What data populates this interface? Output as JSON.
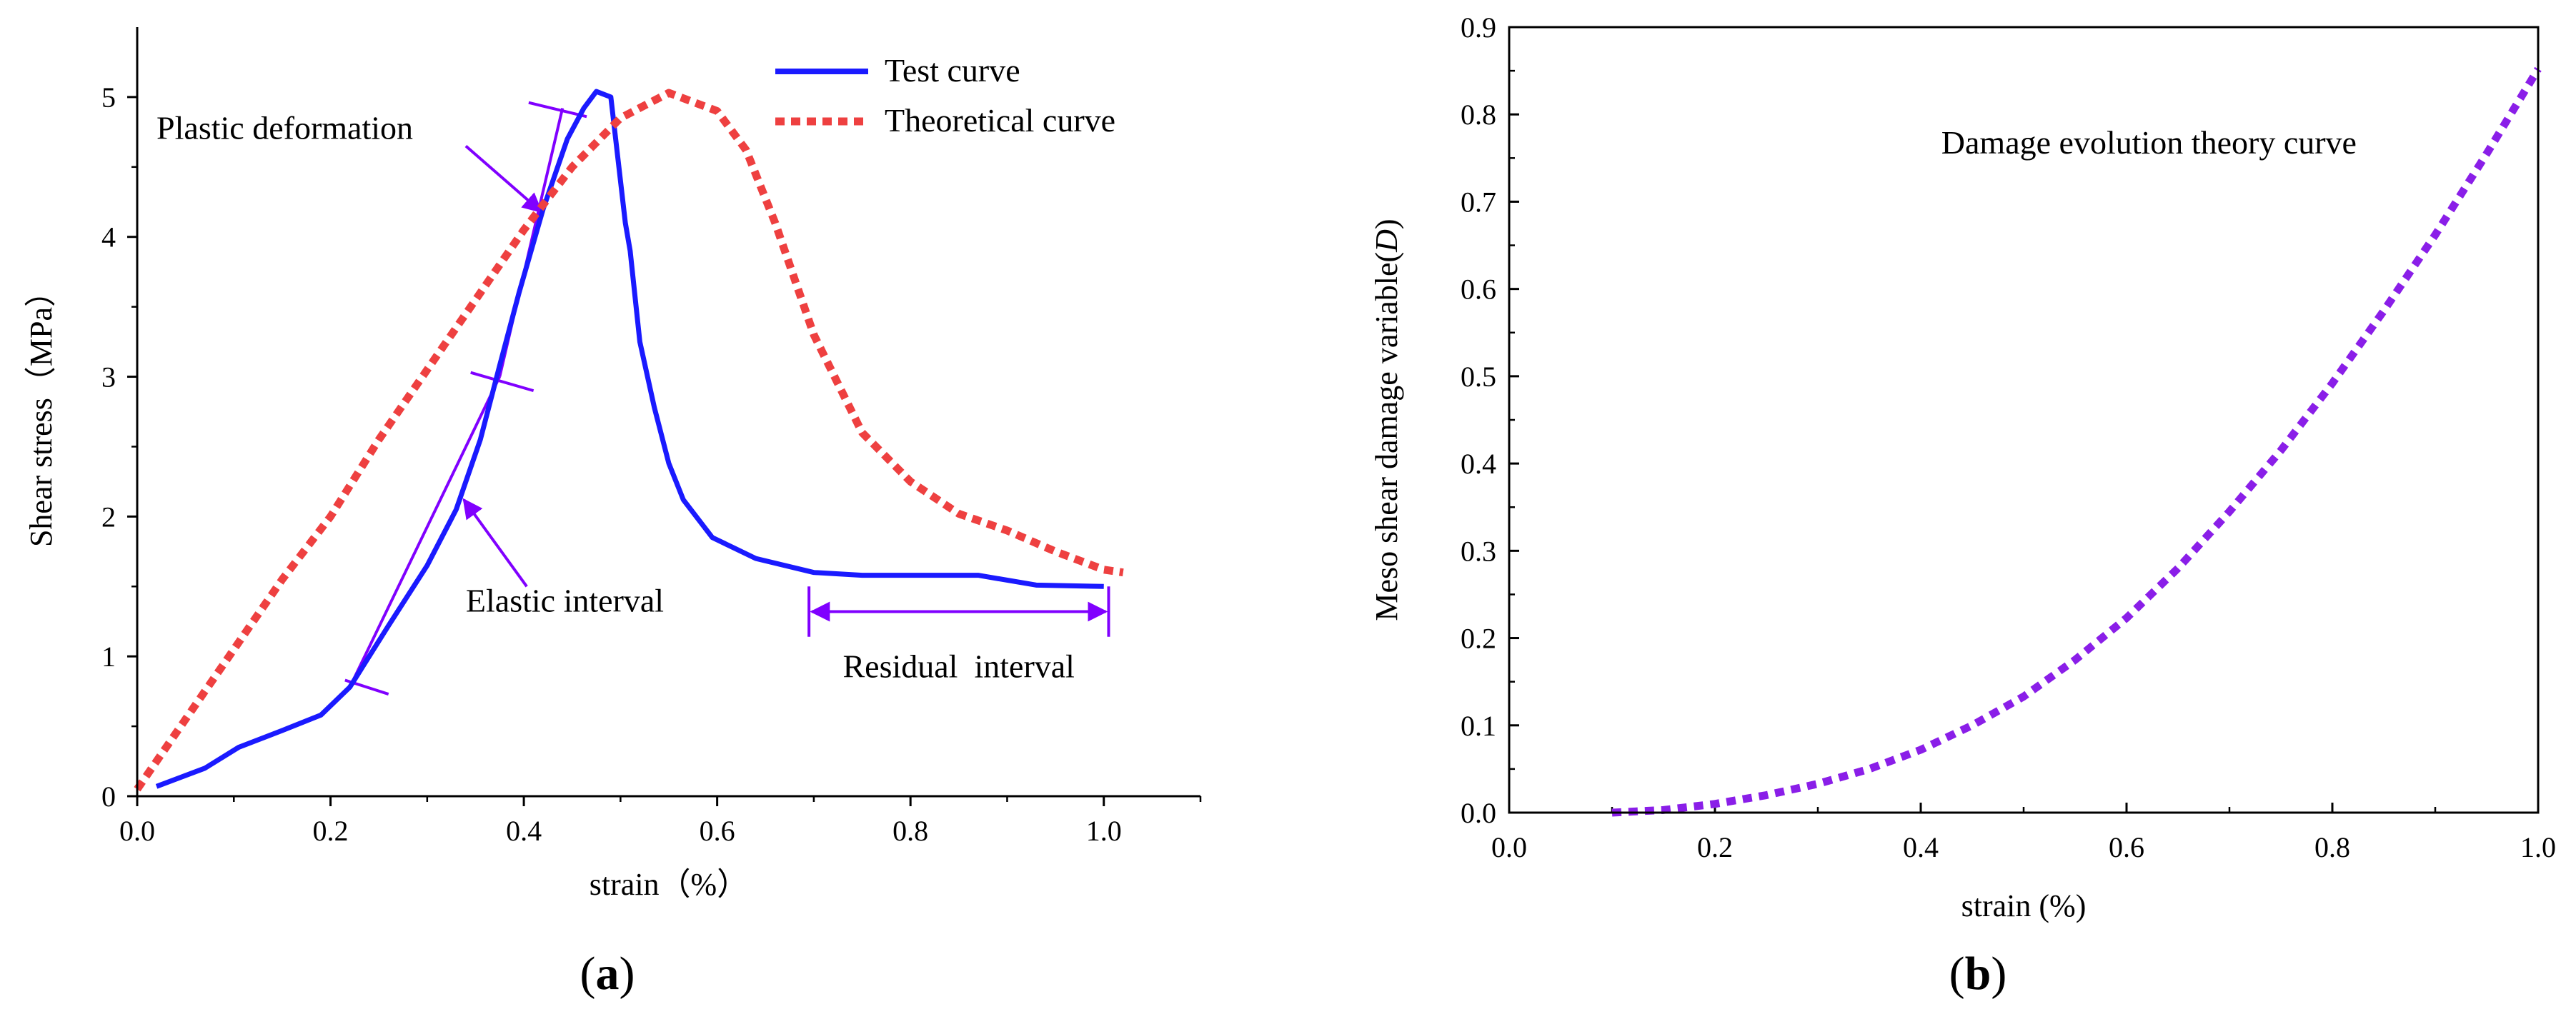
{
  "chart_data": [
    {
      "panel_label_open": "(",
      "panel_label": "a",
      "panel_label_close": ")",
      "type": "line",
      "xlabel": "strain（%）",
      "ylabel": "Shear stress（MPa）",
      "xlim": [
        0,
        1.1
      ],
      "ylim": [
        0,
        5.5
      ],
      "xticks": [
        0.0,
        0.2,
        0.4,
        0.6,
        0.8,
        1.0
      ],
      "xtick_labels": [
        "0.0",
        "0.2",
        "0.4",
        "0.6",
        "0.8",
        "1.0"
      ],
      "yticks": [
        0,
        1,
        2,
        3,
        4,
        5
      ],
      "ytick_labels": [
        "0",
        "1",
        "2",
        "3",
        "4",
        "5"
      ],
      "legend_position": "top-right",
      "series": [
        {
          "name": "Test curve",
          "color": "#1a1aff",
          "style": "solid",
          "x": [
            0.02,
            0.07,
            0.105,
            0.15,
            0.19,
            0.22,
            0.26,
            0.3,
            0.33,
            0.355,
            0.375,
            0.395,
            0.42,
            0.445,
            0.462,
            0.475,
            0.49,
            0.5,
            0.505,
            0.51,
            0.52,
            0.535,
            0.55,
            0.565,
            0.595,
            0.64,
            0.7,
            0.75,
            0.8,
            0.87,
            0.93,
            1.0
          ],
          "y": [
            0.07,
            0.2,
            0.35,
            0.47,
            0.58,
            0.78,
            1.22,
            1.65,
            2.05,
            2.55,
            3.08,
            3.6,
            4.2,
            4.7,
            4.92,
            5.04,
            5.0,
            4.4,
            4.1,
            3.9,
            3.25,
            2.78,
            2.38,
            2.12,
            1.85,
            1.7,
            1.6,
            1.58,
            1.58,
            1.58,
            1.51,
            1.5
          ]
        },
        {
          "name": "Theoretical curve",
          "color": "#ee4040",
          "style": "dotted",
          "x": [
            0.0,
            0.05,
            0.1,
            0.15,
            0.2,
            0.25,
            0.3,
            0.35,
            0.4,
            0.45,
            0.5,
            0.55,
            0.6,
            0.63,
            0.66,
            0.7,
            0.75,
            0.8,
            0.85,
            0.9,
            0.95,
            1.0,
            1.02
          ],
          "y": [
            0.05,
            0.55,
            1.05,
            1.55,
            2.0,
            2.55,
            3.05,
            3.55,
            4.05,
            4.5,
            4.85,
            5.03,
            4.9,
            4.62,
            4.1,
            3.3,
            2.6,
            2.25,
            2.02,
            1.9,
            1.75,
            1.62,
            1.6
          ]
        }
      ],
      "annotations": [
        {
          "text": "Plastic deformation",
          "x": 0.02,
          "y": 4.7
        },
        {
          "text": "Elastic interval",
          "x": 0.34,
          "y": 1.32
        },
        {
          "text": "Residual  interval",
          "x": 0.73,
          "y": 0.85
        }
      ],
      "guide_lines": {
        "elastic_line": [
          [
            0.22,
            0.78
          ],
          [
            0.375,
            3.0
          ]
        ],
        "plastic_line": [
          [
            0.375,
            3.0
          ],
          [
            0.44,
            4.92
          ]
        ],
        "ticks": [
          [
            [
              0.215,
              0.83
            ],
            [
              0.26,
              0.73
            ]
          ],
          [
            [
              0.345,
              3.03
            ],
            [
              0.41,
              2.9
            ]
          ],
          [
            [
              0.405,
              4.96
            ],
            [
              0.465,
              4.86
            ]
          ]
        ],
        "arrows": [
          {
            "from": [
              0.34,
              4.65
            ],
            "to": [
              0.418,
              4.18
            ]
          },
          {
            "from": [
              0.403,
              1.5
            ],
            "to": [
              0.338,
              2.12
            ]
          }
        ],
        "residual_bracket": {
          "x0": 0.695,
          "x1": 1.005,
          "y": 1.32,
          "cap": 0.18
        }
      },
      "guide_color": "#8000ff"
    },
    {
      "panel_label_open": "(",
      "panel_label": "b",
      "panel_label_close": ")",
      "type": "line",
      "xlabel": "strain (%)",
      "ylabel_prefix": "Meso shear damage variable(",
      "ylabel_symbol": "D",
      "ylabel_suffix": ")",
      "xlim": [
        0,
        1.0
      ],
      "ylim": [
        0,
        0.9
      ],
      "xticks": [
        0.0,
        0.2,
        0.4,
        0.6,
        0.8,
        1.0
      ],
      "xtick_labels": [
        "0.0",
        "0.2",
        "0.4",
        "0.6",
        "0.8",
        "1.0"
      ],
      "yticks": [
        0.0,
        0.1,
        0.2,
        0.3,
        0.4,
        0.5,
        0.6,
        0.7,
        0.8,
        0.9
      ],
      "ytick_labels": [
        "0.0",
        "0.1",
        "0.2",
        "0.3",
        "0.4",
        "0.5",
        "0.6",
        "0.7",
        "0.8",
        "0.9"
      ],
      "series": [
        {
          "name": "Damage evolution theory curve",
          "color": "#8a1ee8",
          "style": "dotted",
          "x": [
            0.1,
            0.15,
            0.2,
            0.25,
            0.3,
            0.35,
            0.4,
            0.45,
            0.5,
            0.55,
            0.6,
            0.65,
            0.7,
            0.75,
            0.8,
            0.85,
            0.9,
            0.95,
            1.0
          ],
          "y": [
            0.0,
            0.003,
            0.01,
            0.02,
            0.033,
            0.05,
            0.072,
            0.1,
            0.133,
            0.175,
            0.223,
            0.28,
            0.345,
            0.415,
            0.492,
            0.575,
            0.662,
            0.755,
            0.852
          ]
        }
      ],
      "annotations": [
        {
          "text": "Damage evolution theory curve",
          "x": 0.42,
          "y": 0.755
        }
      ]
    }
  ]
}
